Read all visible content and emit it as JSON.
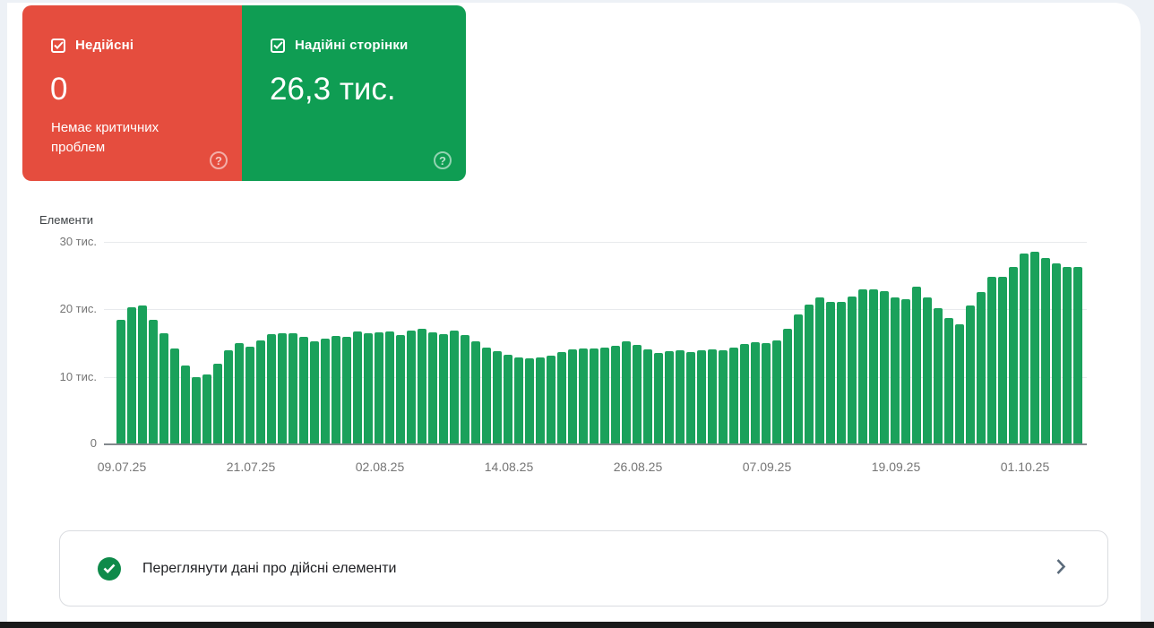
{
  "cards": {
    "invalid": {
      "label": "Недійсні",
      "value": "0",
      "subtext": "Немає критичних проблем",
      "color": "#e54d3e",
      "checkbox_checked": true,
      "help_glyph": "?"
    },
    "valid": {
      "label": "Надійні сторінки",
      "value": "26,3 тис.",
      "color": "#0f9d53",
      "checkbox_checked": true,
      "help_glyph": "?"
    }
  },
  "chart_data": {
    "type": "bar",
    "title": "Елементи",
    "ylabel": "Елементи",
    "xlabel": "",
    "ylim": [
      0,
      30000
    ],
    "unit": "тис.",
    "grid": true,
    "bar_color": "#1aa15b",
    "y_ticks": [
      "30 тис.",
      "20 тис.",
      "10 тис.",
      "0"
    ],
    "x_tick_labels": [
      "09.07.25",
      "21.07.25",
      "02.08.25",
      "14.08.25",
      "26.08.25",
      "07.09.25",
      "19.09.25",
      "01.10.25"
    ],
    "x_tick_bar_indices": [
      0,
      12,
      24,
      36,
      48,
      60,
      72,
      84
    ],
    "values_thousands": [
      18.4,
      20.3,
      20.5,
      18.4,
      16.4,
      14.1,
      11.6,
      9.9,
      10.3,
      11.9,
      13.9,
      14.9,
      14.4,
      15.3,
      16.2,
      16.4,
      16.4,
      15.9,
      15.2,
      15.6,
      16.0,
      15.9,
      16.6,
      16.4,
      16.5,
      16.6,
      16.1,
      16.8,
      17.0,
      16.5,
      16.2,
      16.8,
      16.1,
      15.2,
      14.3,
      13.7,
      13.2,
      12.8,
      12.7,
      12.8,
      13.1,
      13.6,
      14.0,
      14.1,
      14.1,
      14.3,
      14.5,
      15.2,
      14.7,
      14.0,
      13.5,
      13.7,
      13.9,
      13.6,
      13.9,
      14.0,
      13.9,
      14.3,
      14.8,
      15.1,
      14.9,
      15.3,
      17.0,
      19.2,
      20.7,
      21.7,
      21.0,
      21.1,
      21.9,
      22.9,
      22.9,
      22.6,
      21.7,
      21.4,
      23.3,
      21.7,
      20.1,
      18.6,
      17.7,
      20.5,
      22.5,
      24.8,
      24.8,
      26.3,
      28.3,
      28.5,
      27.6,
      26.8,
      26.2,
      26.3
    ]
  },
  "footer_row": {
    "label": "Переглянути дані про дійсні елементи",
    "status_color": "#0e8a4a"
  }
}
